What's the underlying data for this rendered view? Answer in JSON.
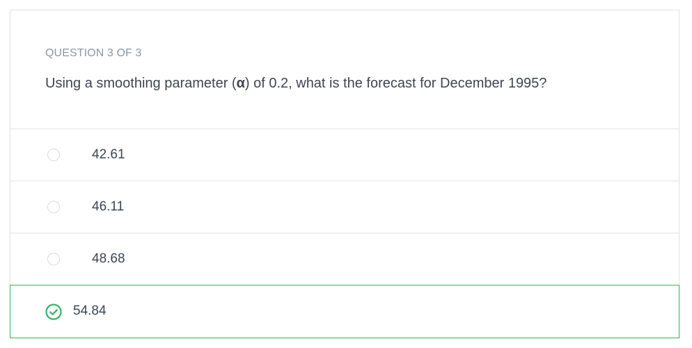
{
  "question": {
    "counter": "QUESTION 3 OF 3",
    "text_before": "Using a smoothing parameter (",
    "alpha_symbol": "α",
    "text_after": ") of 0.2, what is the forecast for December 1995?"
  },
  "options": [
    {
      "label": "42.61",
      "state": "unselected"
    },
    {
      "label": "46.11",
      "state": "unselected"
    },
    {
      "label": "48.68",
      "state": "unselected"
    },
    {
      "label": "54.84",
      "state": "correct"
    }
  ],
  "colors": {
    "correct": "#2eb563",
    "counter": "#8a97a8",
    "text": "#3d4551",
    "divider": "#e3e4e6"
  },
  "icons": {
    "correct": "check-circle-icon",
    "unselected": "radio-circle-icon"
  }
}
